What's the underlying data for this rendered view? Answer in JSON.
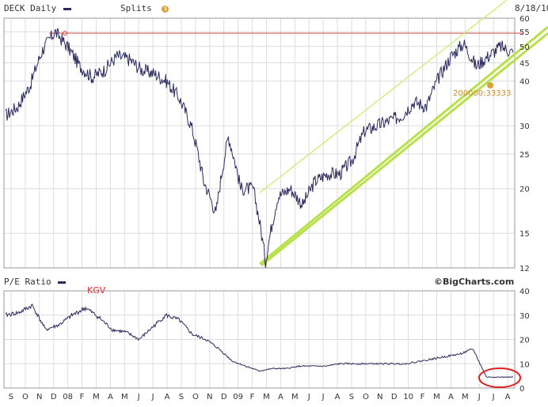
{
  "header": {
    "symbol_label": "DECK Daily",
    "splits_label": "Splits",
    "date": "8/18/10",
    "colors": {
      "price_line": "#2b2b5e",
      "splits_icon": "#d9a23c"
    }
  },
  "lower_panel": {
    "title": "P/E Ratio",
    "annotation": "KGV",
    "brand": "©BigCharts.com",
    "colors": {
      "annotation": "#e02020",
      "circle": "#e02020"
    }
  },
  "split_marker": {
    "label": "200000:33333",
    "color": "#c98d2e"
  },
  "chart_data": [
    {
      "type": "line",
      "title": "DECK Daily",
      "scale": "log",
      "ylim": [
        12,
        60
      ],
      "y_ticks": [
        12,
        15,
        20,
        25,
        30,
        40,
        45,
        50,
        55,
        60
      ],
      "grid": true,
      "x_ticks": [
        "S",
        "O",
        "N",
        "D",
        "08",
        "F",
        "M",
        "A",
        "M",
        "J",
        "J",
        "A",
        "S",
        "O",
        "N",
        "D",
        "09",
        "F",
        "M",
        "A",
        "M",
        "J",
        "J",
        "A",
        "S",
        "O",
        "N",
        "D",
        "10",
        "F",
        "M",
        "A",
        "M",
        "J",
        "J",
        "A"
      ],
      "series": [
        {
          "values": [
            32,
            34,
            39,
            49,
            55,
            50,
            44,
            41,
            43,
            47,
            46,
            43,
            42,
            40,
            36,
            30,
            21,
            17,
            28,
            20,
            20,
            12.5,
            19,
            20,
            18,
            21,
            22,
            22,
            24,
            29,
            30,
            31,
            32,
            35,
            34,
            41,
            47,
            51,
            44,
            47,
            50,
            48
          ]
        }
      ],
      "annotations": [
        {
          "kind": "horizontal-line",
          "y": 55,
          "color": "#d04848"
        },
        {
          "kind": "trend-lines",
          "color": "#b8e04a"
        }
      ]
    },
    {
      "type": "line",
      "title": "P/E Ratio",
      "ylim": [
        0,
        40
      ],
      "y_ticks": [
        0,
        10,
        20,
        30,
        40
      ],
      "grid": true,
      "series": [
        {
          "values": [
            30,
            31,
            34,
            24,
            26,
            30,
            33,
            29,
            24,
            23,
            20,
            25,
            30,
            28,
            22,
            20,
            16,
            11,
            9,
            7,
            8,
            8,
            9,
            9,
            9,
            10,
            10,
            10,
            10,
            10,
            10,
            11,
            12,
            13,
            14,
            16,
            4.5,
            4.5,
            4.5
          ]
        }
      ]
    }
  ]
}
